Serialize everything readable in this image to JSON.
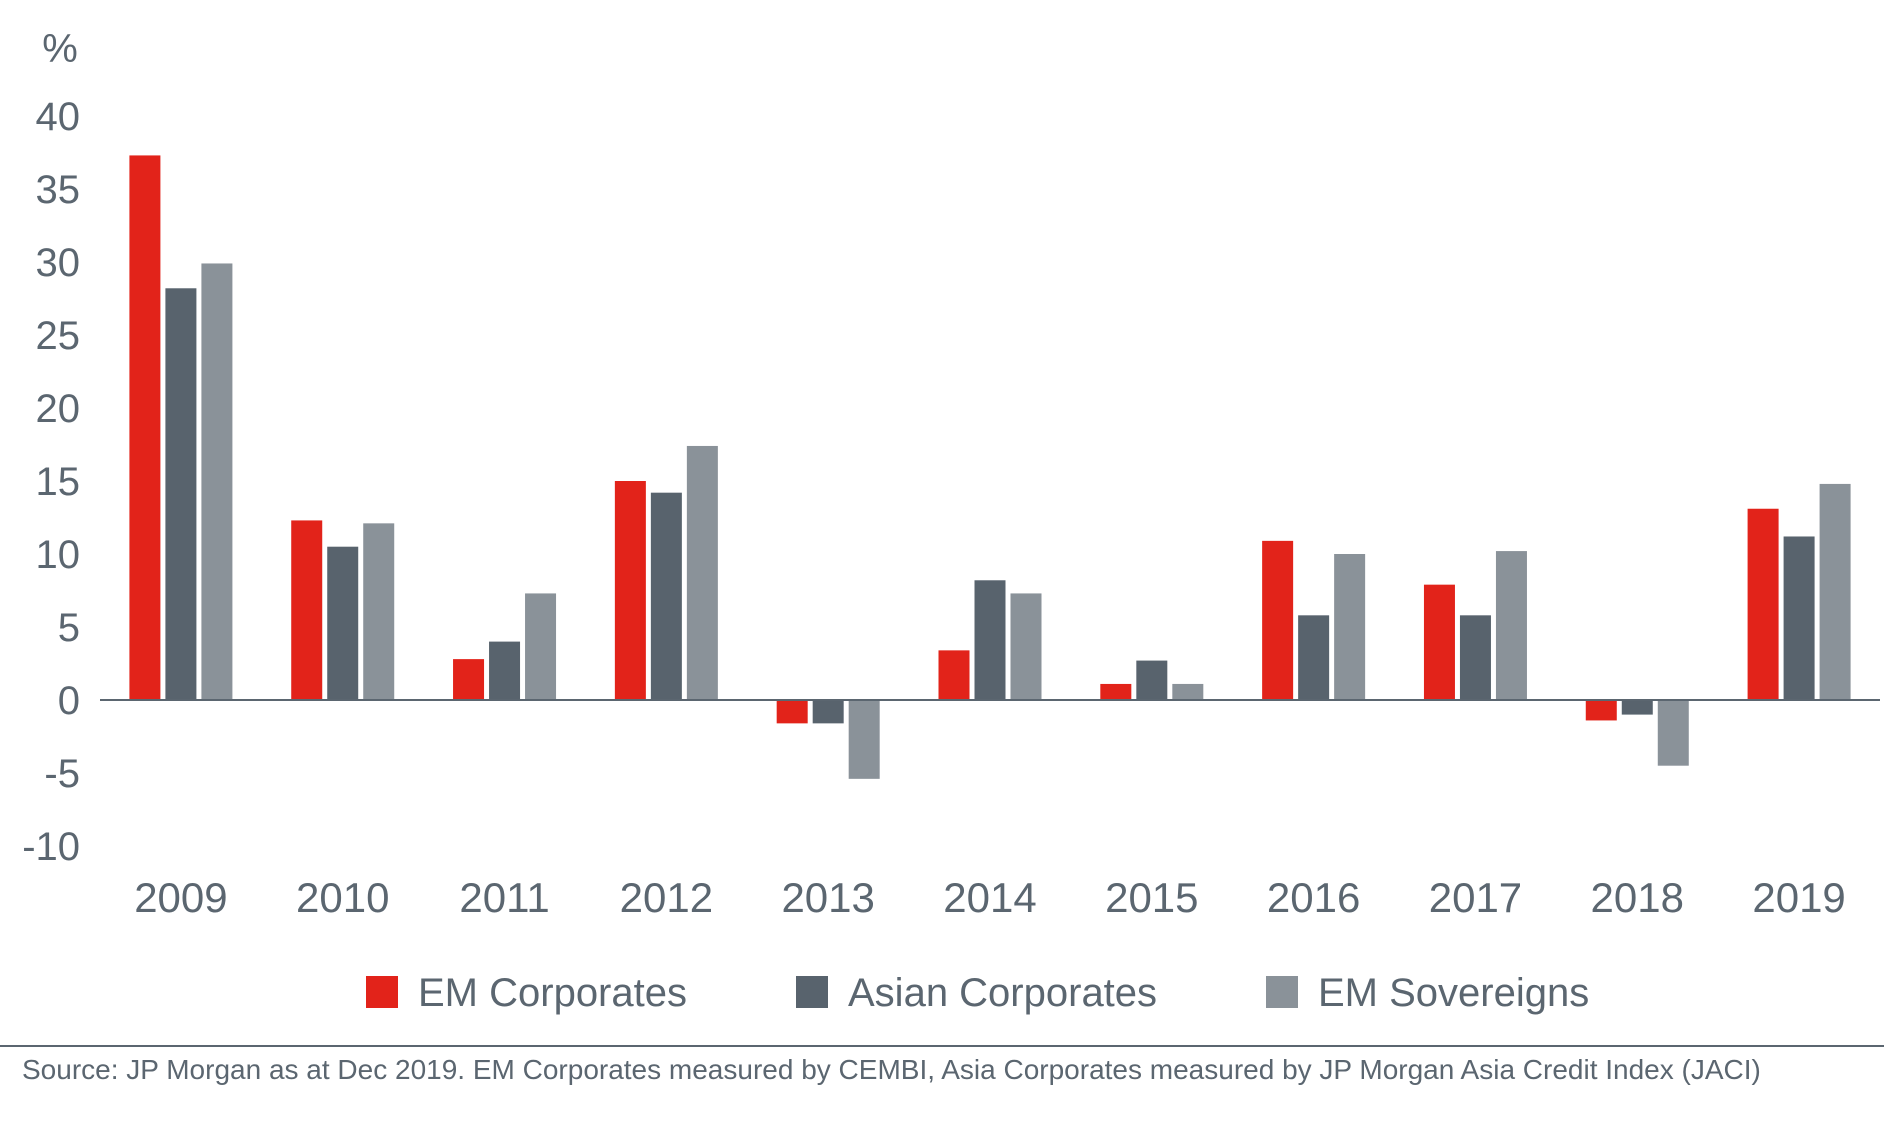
{
  "chart_data": {
    "type": "bar",
    "title": "",
    "ylabel": "%",
    "xlabel": "",
    "ylim": [
      -10,
      40
    ],
    "yticks": [
      40,
      35,
      30,
      25,
      20,
      15,
      10,
      5,
      0,
      -5,
      -10
    ],
    "categories": [
      "2009",
      "2010",
      "2011",
      "2012",
      "2013",
      "2014",
      "2015",
      "2016",
      "2017",
      "2018",
      "2019"
    ],
    "series": [
      {
        "name": "EM Corporates",
        "color": "#e2231a",
        "values": [
          37.3,
          12.3,
          2.8,
          15.0,
          -1.6,
          3.4,
          1.1,
          10.9,
          7.9,
          -1.4,
          13.1
        ]
      },
      {
        "name": "Asian Corporates",
        "color": "#58636d",
        "values": [
          28.2,
          10.5,
          4.0,
          14.2,
          -1.6,
          8.2,
          2.7,
          5.8,
          5.8,
          -1.0,
          11.2
        ]
      },
      {
        "name": "EM Sovereigns",
        "color": "#8a9299",
        "values": [
          29.9,
          12.1,
          7.3,
          17.4,
          -5.4,
          7.3,
          1.1,
          10.0,
          10.2,
          -4.5,
          14.8
        ]
      }
    ],
    "legend_position": "bottom"
  },
  "source": {
    "text": "Source: JP Morgan as at Dec 2019. EM Corporates measured by CEMBI, Asia Corporates measured by JP Morgan Asia Credit Index (JACI)"
  }
}
